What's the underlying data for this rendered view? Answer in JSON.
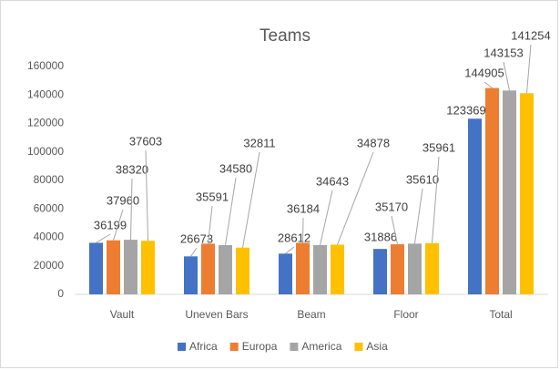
{
  "chart_data": {
    "type": "bar",
    "title": "Teams",
    "categories": [
      "Vault",
      "Uneven Bars",
      "Beam",
      "Floor",
      "Total"
    ],
    "series": [
      {
        "name": "Africa",
        "color": "#4472c4",
        "values": [
          36199,
          26673,
          28612,
          31886,
          123369
        ]
      },
      {
        "name": "Europa",
        "color": "#ed7d31",
        "values": [
          37960,
          35591,
          36184,
          35170,
          144905
        ]
      },
      {
        "name": "America",
        "color": "#a5a5a5",
        "values": [
          38320,
          34580,
          34643,
          35610,
          143153
        ]
      },
      {
        "name": "Asia",
        "color": "#ffc000",
        "values": [
          37603,
          32811,
          34878,
          35961,
          141254
        ]
      }
    ],
    "ylim": [
      0,
      160000
    ],
    "yticks": [
      0,
      20000,
      40000,
      60000,
      80000,
      100000,
      120000,
      140000,
      160000
    ],
    "legend": "bottom"
  }
}
